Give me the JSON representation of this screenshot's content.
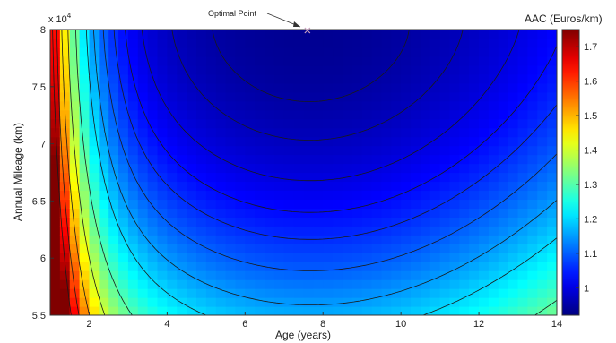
{
  "chart_data": {
    "type": "heatmap",
    "title": "",
    "xlabel": "Age (years)",
    "ylabel": "Annual Mileage (km)",
    "y_multiplier_label": "x 10",
    "y_multiplier_exponent": "4",
    "colorbar_label": "AAC (Euros/km)",
    "xlim": [
      1,
      14
    ],
    "ylim": [
      5.5,
      8
    ],
    "x_ticks": [
      2,
      4,
      6,
      8,
      10,
      12,
      14
    ],
    "x_tick_labels": [
      "2",
      "4",
      "6",
      "8",
      "10",
      "12",
      "14"
    ],
    "y_ticks": [
      5.5,
      6,
      6.5,
      7,
      7.5,
      8
    ],
    "y_tick_labels": [
      "5.5",
      "6",
      "6.5",
      "7",
      "7.5",
      "8"
    ],
    "colorbar_range": [
      0.92,
      1.75
    ],
    "colorbar_ticks": [
      1,
      1.1,
      1.2,
      1.3,
      1.4,
      1.5,
      1.6,
      1.7
    ],
    "colorbar_tick_labels": [
      "1",
      "1.1",
      "1.2",
      "1.3",
      "1.4",
      "1.5",
      "1.6",
      "1.7"
    ],
    "colormap": "jet",
    "annotation": {
      "text": "Optimal Point",
      "x": 7.6,
      "y": 8.0
    },
    "contour_levels_approx": [
      0.95,
      0.97,
      1.0,
      1.03,
      1.06,
      1.1,
      1.15,
      1.2,
      1.3,
      1.4,
      1.5,
      1.6,
      1.7
    ]
  }
}
